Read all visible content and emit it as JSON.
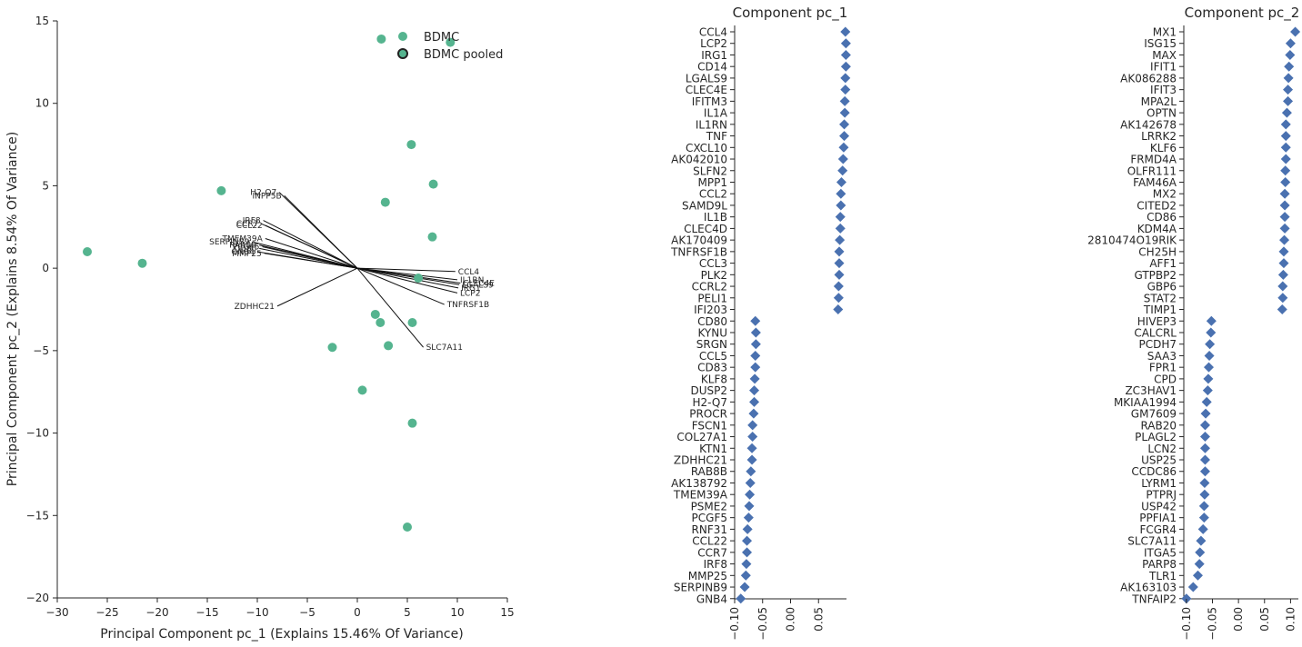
{
  "chart_data": [
    {
      "type": "scatter",
      "xlabel": "Principal Component pc_1 (Explains 15.46% Of Variance)",
      "ylabel": "Principal Component pc_2 (Explains 8.54% Of Variance)",
      "xlim": [
        -30,
        15
      ],
      "ylim": [
        -20,
        15
      ],
      "xticks": [
        -30,
        -25,
        -20,
        -15,
        -10,
        -5,
        0,
        5,
        10,
        15
      ],
      "yticks": [
        -20,
        -15,
        -10,
        -5,
        0,
        5,
        10,
        15
      ],
      "color": "#55b48f",
      "legend": [
        "BDMC",
        "BDMC pooled"
      ],
      "points": [
        {
          "x": 2.4,
          "y": 13.9
        },
        {
          "x": 9.3,
          "y": 13.7
        },
        {
          "x": 5.4,
          "y": 7.5
        },
        {
          "x": 7.6,
          "y": 5.1
        },
        {
          "x": 2.8,
          "y": 4.0
        },
        {
          "x": -13.6,
          "y": 4.7
        },
        {
          "x": 7.5,
          "y": 1.9
        },
        {
          "x": -27.0,
          "y": 1.0
        },
        {
          "x": -21.5,
          "y": 0.3
        },
        {
          "x": 6.1,
          "y": -0.6
        },
        {
          "x": 1.8,
          "y": -2.8
        },
        {
          "x": 2.3,
          "y": -3.3
        },
        {
          "x": 5.5,
          "y": -3.3
        },
        {
          "x": -2.5,
          "y": -4.8
        },
        {
          "x": 3.1,
          "y": -4.7
        },
        {
          "x": 0.5,
          "y": -7.4
        },
        {
          "x": 5.5,
          "y": -9.4
        },
        {
          "x": 5.0,
          "y": -15.7
        }
      ],
      "loadings": [
        {
          "label": "H2-Q7",
          "x": -7.8,
          "y": 4.6
        },
        {
          "label": "INPP5B",
          "x": -7.3,
          "y": 4.4
        },
        {
          "label": "IRF8",
          "x": -9.4,
          "y": 2.9
        },
        {
          "label": "CCR7",
          "x": -9.6,
          "y": 2.7
        },
        {
          "label": "CCL22",
          "x": -9.2,
          "y": 2.6
        },
        {
          "label": "TMEM39A",
          "x": -9.2,
          "y": 1.8
        },
        {
          "label": "SERPINB9",
          "x": -10.5,
          "y": 1.6
        },
        {
          "label": "RAB8B",
          "x": -9.8,
          "y": 1.4
        },
        {
          "label": "PCGF5",
          "x": -9.5,
          "y": 1.3
        },
        {
          "label": "CD80",
          "x": -9.8,
          "y": 1.2
        },
        {
          "label": "GNB4",
          "x": -10.0,
          "y": 1.0
        },
        {
          "label": "MMP25",
          "x": -9.3,
          "y": 0.9
        },
        {
          "label": "ZDHHC21",
          "x": -8.0,
          "y": -2.3
        },
        {
          "label": "CCL4",
          "x": 9.8,
          "y": -0.2
        },
        {
          "label": "IL1RN",
          "x": 10.0,
          "y": -0.7
        },
        {
          "label": "CLEC4E",
          "x": 10.3,
          "y": -0.9
        },
        {
          "label": "LGALS9",
          "x": 10.2,
          "y": -1.0
        },
        {
          "label": "IRG1",
          "x": 10.1,
          "y": -1.2
        },
        {
          "label": "LCP2",
          "x": 10.0,
          "y": -1.5
        },
        {
          "label": "TNFRSF1B",
          "x": 8.7,
          "y": -2.2
        },
        {
          "label": "SLC7A11",
          "x": 6.6,
          "y": -4.8
        }
      ]
    },
    {
      "type": "scatter",
      "title": "Component pc_1",
      "xlim": [
        -0.1,
        0.1
      ],
      "xticks": [
        -0.1,
        -0.05,
        0.0,
        0.05
      ],
      "color": "#4a71b0",
      "genes": [
        "CCL4",
        "LCP2",
        "IRG1",
        "CD14",
        "LGALS9",
        "CLEC4E",
        "IFITM3",
        "IL1A",
        "IL1RN",
        "TNF",
        "CXCL10",
        "AK042010",
        "SLFN2",
        "MPP1",
        "CCL2",
        "SAMD9L",
        "IL1B",
        "CLEC4D",
        "AK170409",
        "TNFRSF1B",
        "CCL3",
        "PLK2",
        "CCRL2",
        "PELI1",
        "IFI203",
        "CD80",
        "KYNU",
        "SRGN",
        "CCL5",
        "CD83",
        "KLF8",
        "DUSP2",
        "H2-Q7",
        "PROCR",
        "FSCN1",
        "COL27A1",
        "KTN1",
        "ZDHHC21",
        "RAB8B",
        "AK138792",
        "TMEM39A",
        "PSME2",
        "PCGF5",
        "RNF31",
        "CCL22",
        "CCR7",
        "IRF8",
        "MMP25",
        "SERPINB9",
        "GNB4"
      ],
      "values": [
        0.098,
        0.099,
        0.099,
        0.099,
        0.098,
        0.098,
        0.097,
        0.097,
        0.096,
        0.096,
        0.095,
        0.094,
        0.093,
        0.091,
        0.09,
        0.09,
        0.089,
        0.089,
        0.088,
        0.087,
        0.087,
        0.087,
        0.086,
        0.086,
        0.085,
        -0.063,
        -0.062,
        -0.062,
        -0.063,
        -0.063,
        -0.064,
        -0.065,
        -0.065,
        -0.066,
        -0.068,
        -0.068,
        -0.069,
        -0.069,
        -0.071,
        -0.072,
        -0.073,
        -0.074,
        -0.075,
        -0.077,
        -0.078,
        -0.078,
        -0.079,
        -0.08,
        -0.082,
        -0.089
      ]
    },
    {
      "type": "scatter",
      "title": "Component pc_2",
      "xlim": [
        -0.105,
        0.115
      ],
      "xticks": [
        -0.1,
        -0.05,
        0.0,
        0.05,
        0.1
      ],
      "color": "#4a71b0",
      "genes": [
        "MX1",
        "ISG15",
        "MAX",
        "IFIT1",
        "AK086288",
        "IFIT3",
        "MPA2L",
        "OPTN",
        "AK142678",
        "LRRK2",
        "KLF6",
        "FRMD4A",
        "OLFR111",
        "FAM46A",
        "MX2",
        "CITED2",
        "CD86",
        "KDM4A",
        "2810474O19RIK",
        "CH25H",
        "AFF1",
        "GTPBP2",
        "GBP6",
        "STAT2",
        "TIMP1",
        "HIVEP3",
        "CALCRL",
        "PCDH7",
        "SAA3",
        "FPR1",
        "CPD",
        "ZC3HAV1",
        "MKIAA1994",
        "GM7609",
        "RAB20",
        "PLAGL2",
        "LCN2",
        "USP25",
        "CCDC86",
        "LYRM1",
        "PTPRJ",
        "USP42",
        "PPFIA1",
        "FCGR4",
        "SLC7A11",
        "ITGA5",
        "PARP8",
        "TLR1",
        "AK163103",
        "TNFAIP2"
      ],
      "values": [
        0.109,
        0.1,
        0.099,
        0.097,
        0.096,
        0.095,
        0.095,
        0.093,
        0.091,
        0.091,
        0.091,
        0.091,
        0.09,
        0.09,
        0.089,
        0.089,
        0.089,
        0.089,
        0.088,
        0.087,
        0.087,
        0.086,
        0.085,
        0.085,
        0.084,
        -0.052,
        -0.053,
        -0.055,
        -0.056,
        -0.057,
        -0.058,
        -0.059,
        -0.061,
        -0.063,
        -0.064,
        -0.064,
        -0.064,
        -0.064,
        -0.064,
        -0.065,
        -0.065,
        -0.066,
        -0.066,
        -0.068,
        -0.072,
        -0.074,
        -0.075,
        -0.078,
        -0.087,
        -0.1
      ]
    }
  ]
}
